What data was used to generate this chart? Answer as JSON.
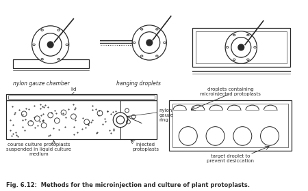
{
  "title": "Fig. 6.12:  Methods for the microinjection and culture of plant protoplasts.",
  "background_color": "#ffffff",
  "line_color": "#2a2a2a",
  "labels": {
    "nylon_gauze": "nylon gauze chamber",
    "hanging": "hanging droplets",
    "lid": "lid",
    "nylon_ring": "nylon\ngauze\nring",
    "course_culture": "course culture protoplasts\nsuspended in liquid culture\nmedium",
    "injected": "injected\nprotoplasts",
    "droplets_contain": "droplets containing\nmicroinjected protoplasts",
    "target_droplet": "target droplet to\nprevent desiccation"
  },
  "figsize": [
    4.5,
    2.8
  ],
  "dpi": 100
}
